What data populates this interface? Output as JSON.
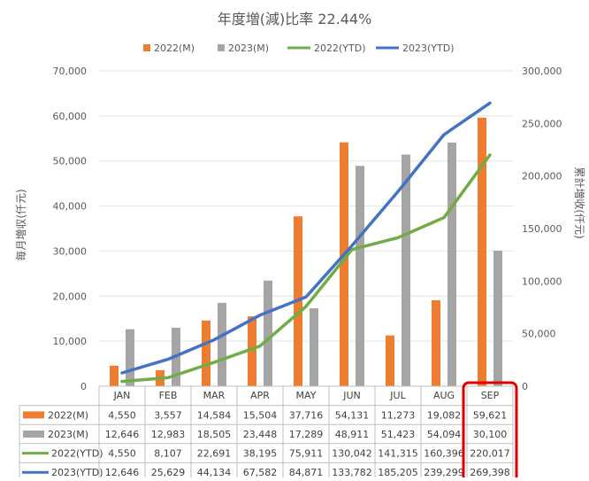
{
  "chart_data": {
    "type": "bar",
    "title": "年度増(減)比率 22.44%",
    "ylabel": "毎月増収(仟元)",
    "y2label": "累計増收(仟元)",
    "ylim": [
      0,
      70000
    ],
    "y2lim": [
      0,
      300000
    ],
    "y_ticks": [
      "0",
      "10,000",
      "20,000",
      "30,000",
      "40,000",
      "50,000",
      "60,000",
      "70,000"
    ],
    "y2_ticks": [
      "0",
      "50,000",
      "100,000",
      "150,000",
      "200,000",
      "250,000",
      "300,000"
    ],
    "categories": [
      "JAN",
      "FEB",
      "MAR",
      "APR",
      "MAY",
      "JUN",
      "JUL",
      "AUG",
      "SEP"
    ],
    "legend_position": "top",
    "grid": true,
    "highlight_category": "SEP",
    "series": [
      {
        "name": "2022(M)",
        "kind": "bar",
        "axis": "left",
        "color": "#ED7D31",
        "values": [
          4550,
          3557,
          14584,
          15504,
          37716,
          54131,
          11273,
          19082,
          59621
        ],
        "labels": [
          "4,550",
          "3,557",
          "14,584",
          "15,504",
          "37,716",
          "54,131",
          "11,273",
          "19,082",
          "59,621"
        ]
      },
      {
        "name": "2023(M)",
        "kind": "bar",
        "axis": "left",
        "color": "#A5A5A5",
        "values": [
          12646,
          12983,
          18505,
          23448,
          17289,
          48911,
          51423,
          54094,
          30100
        ],
        "labels": [
          "12,646",
          "12,983",
          "18,505",
          "23,448",
          "17,289",
          "48,911",
          "51,423",
          "54,094",
          "30,100"
        ]
      },
      {
        "name": "2022(YTD)",
        "kind": "line",
        "axis": "right",
        "color": "#70AD47",
        "values": [
          4550,
          8107,
          22691,
          38195,
          75911,
          130042,
          141315,
          160396,
          220017
        ],
        "labels": [
          "4,550",
          "8,107",
          "22,691",
          "38,195",
          "75,911",
          "130,042",
          "141,315",
          "160,396",
          "220,017"
        ]
      },
      {
        "name": "2023(YTD)",
        "kind": "line",
        "axis": "right",
        "color": "#4472C4",
        "values": [
          12646,
          25629,
          44134,
          67582,
          84871,
          133782,
          185205,
          239299,
          269398
        ],
        "labels": [
          "12,646",
          "25,629",
          "44,134",
          "67,582",
          "84,871",
          "133,782",
          "185,205",
          "239,299",
          "269,398"
        ]
      }
    ]
  }
}
